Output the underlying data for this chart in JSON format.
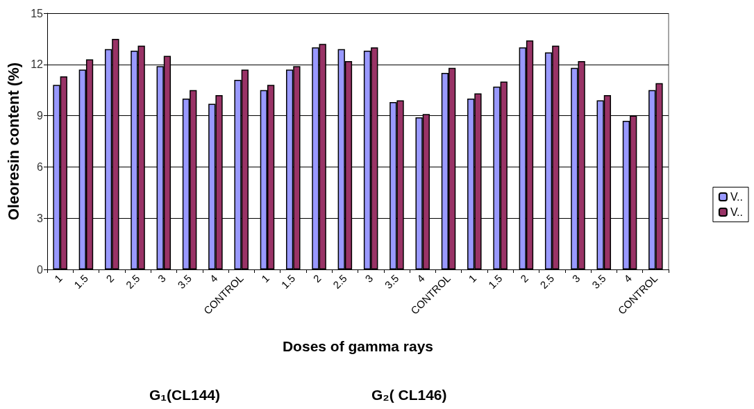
{
  "chart_data": {
    "type": "bar",
    "xlabel": "Doses of gamma rays",
    "ylabel": "Oleoresin content (%)",
    "categories": [
      "1",
      "1.5",
      "2",
      "2.5",
      "3",
      "3.5",
      "4",
      "CONTROL",
      "1",
      "1.5",
      "2",
      "2.5",
      "3",
      "3.5",
      "4",
      "CONTROL",
      "1",
      "1.5",
      "2",
      "2.5",
      "3",
      "3.5",
      "4",
      "CONTROL"
    ],
    "series": [
      {
        "name": "V..",
        "color": "#9999ff",
        "values": [
          10.8,
          11.7,
          12.9,
          12.8,
          11.9,
          10.0,
          9.7,
          11.1,
          10.5,
          11.7,
          13.0,
          12.9,
          12.8,
          9.8,
          8.9,
          11.5,
          10.0,
          10.7,
          13.0,
          12.7,
          11.8,
          9.9,
          8.7,
          10.5
        ]
      },
      {
        "name": "V..",
        "color": "#993366",
        "values": [
          11.3,
          12.3,
          13.5,
          13.1,
          12.5,
          10.5,
          10.2,
          11.7,
          10.8,
          11.9,
          13.2,
          12.2,
          13.0,
          9.9,
          9.1,
          11.8,
          10.3,
          11.0,
          13.4,
          13.1,
          12.2,
          10.2,
          9.0,
          10.9
        ]
      }
    ],
    "ylim": [
      0,
      15
    ],
    "yticks": [
      0,
      3,
      6,
      9,
      12,
      15
    ],
    "grid": "y",
    "legend": "right",
    "annotations": [
      "G₁(CL144)",
      "G₂( CL146)"
    ]
  }
}
